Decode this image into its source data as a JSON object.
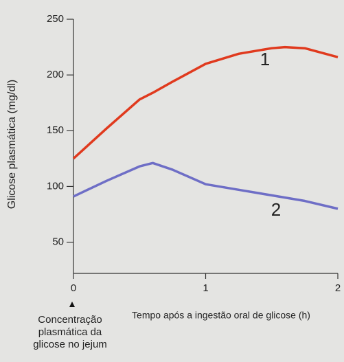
{
  "chart_data": {
    "type": "line",
    "y_label": "Glicose plasmática (mg/dl)",
    "x_label": "Tempo após a ingestão oral de glicose (h)",
    "note": [
      "Concentração",
      "plasmática da",
      "glicose no jejum"
    ],
    "x": [
      0,
      0.25,
      0.5,
      0.6,
      0.75,
      1,
      1.25,
      1.5,
      1.6,
      1.75,
      2
    ],
    "series": [
      {
        "name": "1",
        "color": "#e03a1e",
        "values": [
          125,
          152,
          178,
          184,
          194,
          210,
          219,
          224,
          225,
          224,
          216
        ]
      },
      {
        "name": "2",
        "color": "#6e6ec6",
        "values": [
          91,
          105,
          118,
          121,
          115,
          102,
          97,
          92,
          90,
          87,
          80
        ]
      }
    ],
    "xlim": [
      0,
      2
    ],
    "xticks": [
      0,
      1,
      2
    ],
    "ylim": [
      22,
      250
    ],
    "yticks": [
      50,
      100,
      150,
      200,
      250
    ]
  }
}
